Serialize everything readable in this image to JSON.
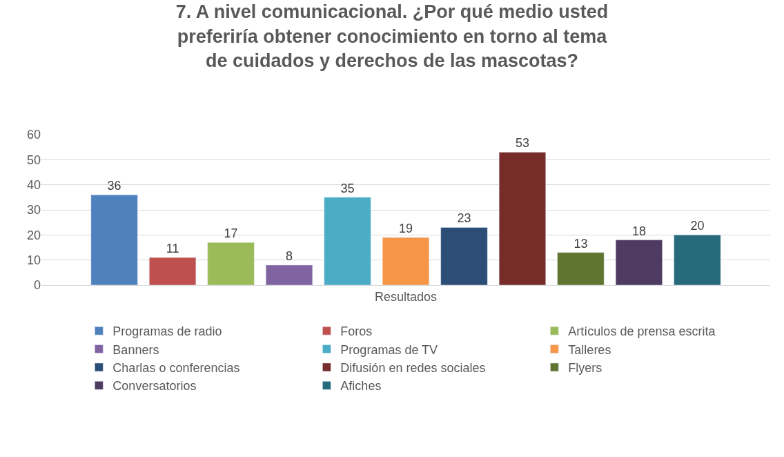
{
  "chart_data": {
    "type": "bar",
    "title": "7. A nivel comunicacional. ¿Por qué medio usted preferiría obtener conocimiento en torno al tema de cuidados y derechos de las mascotas?",
    "categories": [
      "Resultados"
    ],
    "series": [
      {
        "name": "Programas de radio",
        "color": "#4f81bd",
        "values": [
          36
        ]
      },
      {
        "name": "Foros",
        "color": "#c0504d",
        "values": [
          11
        ]
      },
      {
        "name": "Artículos de prensa escrita",
        "color": "#9bbb59",
        "values": [
          17
        ]
      },
      {
        "name": "Banners",
        "color": "#8064a2",
        "values": [
          8
        ]
      },
      {
        "name": "Programas de TV",
        "color": "#4bacc6",
        "values": [
          35
        ]
      },
      {
        "name": "Talleres",
        "color": "#f79646",
        "values": [
          19
        ]
      },
      {
        "name": "Charlas o conferencias",
        "color": "#2c4d75",
        "values": [
          23
        ]
      },
      {
        "name": "Difusión en redes sociales",
        "color": "#772c2a",
        "values": [
          53
        ]
      },
      {
        "name": "Flyers",
        "color": "#5f7530",
        "values": [
          13
        ]
      },
      {
        "name": "Conversatorios",
        "color": "#4d3b62",
        "values": [
          18
        ]
      },
      {
        "name": "Afiches",
        "color": "#276a7c",
        "values": [
          20
        ]
      }
    ],
    "ylim": [
      0,
      60
    ],
    "yticks": [
      0,
      10,
      20,
      30,
      40,
      50,
      60
    ],
    "grid": "y",
    "legend": "bottom",
    "data_labels": true
  }
}
